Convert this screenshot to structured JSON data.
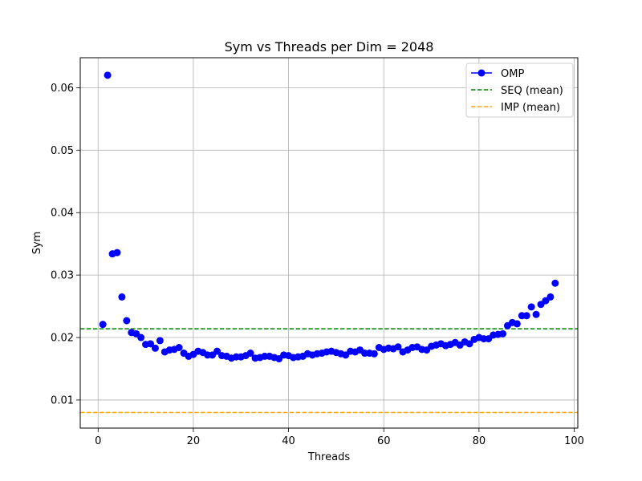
{
  "chart_data": {
    "type": "scatter",
    "title": "Sym vs Threads per Dim = 2048",
    "xlabel": "Threads",
    "ylabel": "Sym",
    "xlim": [
      -3.75,
      100.75
    ],
    "ylim": [
      0.0055,
      0.0648
    ],
    "xticks": [
      0,
      20,
      40,
      60,
      80,
      100
    ],
    "xtick_labels": [
      "0",
      "20",
      "40",
      "60",
      "80",
      "100"
    ],
    "yticks": [
      0.01,
      0.02,
      0.03,
      0.04,
      0.05,
      0.06
    ],
    "ytick_labels": [
      "0.01",
      "0.02",
      "0.03",
      "0.04",
      "0.05",
      "0.06"
    ],
    "grid": true,
    "legend_position": "top-right",
    "series": [
      {
        "name": "OMP",
        "style": "markers",
        "color": "#0000ff",
        "x": [
          1,
          2,
          3,
          4,
          5,
          6,
          7,
          8,
          9,
          10,
          11,
          12,
          13,
          14,
          15,
          16,
          17,
          18,
          19,
          20,
          21,
          22,
          23,
          24,
          25,
          26,
          27,
          28,
          29,
          30,
          31,
          32,
          33,
          34,
          35,
          36,
          37,
          38,
          39,
          40,
          41,
          42,
          43,
          44,
          45,
          46,
          47,
          48,
          49,
          50,
          51,
          52,
          53,
          54,
          55,
          56,
          57,
          58,
          59,
          60,
          61,
          62,
          63,
          64,
          65,
          66,
          67,
          68,
          69,
          70,
          71,
          72,
          73,
          74,
          75,
          76,
          77,
          78,
          79,
          80,
          81,
          82,
          83,
          84,
          85,
          86,
          87,
          88,
          89,
          90,
          91,
          92,
          93,
          94,
          95,
          96
        ],
        "y": [
          0.0221,
          0.062,
          0.0334,
          0.0336,
          0.0265,
          0.0227,
          0.0208,
          0.0206,
          0.02,
          0.0189,
          0.019,
          0.0183,
          0.0195,
          0.0177,
          0.018,
          0.0181,
          0.0184,
          0.0175,
          0.017,
          0.0173,
          0.0178,
          0.0176,
          0.0172,
          0.0172,
          0.0178,
          0.0171,
          0.017,
          0.0167,
          0.0169,
          0.0169,
          0.0171,
          0.0175,
          0.0167,
          0.0168,
          0.017,
          0.017,
          0.0168,
          0.0166,
          0.0172,
          0.0171,
          0.0168,
          0.0169,
          0.017,
          0.0174,
          0.0172,
          0.0174,
          0.0175,
          0.0177,
          0.0178,
          0.0176,
          0.0174,
          0.0172,
          0.0178,
          0.0177,
          0.018,
          0.0175,
          0.0175,
          0.0174,
          0.0184,
          0.0181,
          0.0183,
          0.0182,
          0.0185,
          0.0177,
          0.018,
          0.0184,
          0.0185,
          0.0181,
          0.018,
          0.0186,
          0.0188,
          0.019,
          0.0187,
          0.0189,
          0.0192,
          0.0188,
          0.0193,
          0.019,
          0.0197,
          0.02,
          0.0198,
          0.0198,
          0.0204,
          0.0205,
          0.0206,
          0.0219,
          0.0224,
          0.0222,
          0.0235,
          0.0235,
          0.0249,
          0.0237,
          0.0253,
          0.0259,
          0.0265,
          0.0287
        ]
      },
      {
        "name": "SEQ (mean)",
        "style": "dashed-hline",
        "color": "#008000",
        "y": 0.0214
      },
      {
        "name": "IMP (mean)",
        "style": "dashed-hline",
        "color": "#ffa500",
        "y": 0.008
      }
    ]
  }
}
